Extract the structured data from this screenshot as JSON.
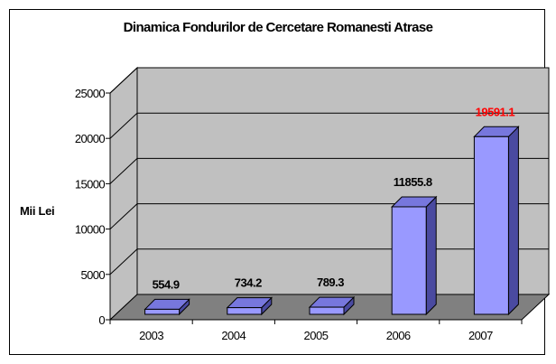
{
  "chart_data": {
    "type": "bar",
    "title": "Dinamica Fondurilor de Cercetare Romanesti Atrase",
    "xlabel": "",
    "ylabel": "Mii Lei",
    "categories": [
      "2003",
      "2004",
      "2005",
      "2006",
      "2007"
    ],
    "values": [
      554.9,
      734.2,
      789.3,
      11855.8,
      19591.1
    ],
    "value_labels": [
      "554.9",
      "734.2",
      "789.3",
      "11855.8",
      "19591.1"
    ],
    "y_ticks": [
      "0",
      "5000",
      "10000",
      "15000",
      "20000",
      "25000"
    ],
    "ylim": [
      0,
      25000
    ],
    "grid": true,
    "legend": "none",
    "three_d": true,
    "colors": {
      "bar_front": "#9999ff",
      "bar_top": "#7777dd",
      "bar_side": "#4a4aa0",
      "wall": "#c0c0c0",
      "floor": "#808080",
      "highlight_label": "#ff0000",
      "label": "#000000"
    },
    "highlighted_labels": [
      "19591.1"
    ]
  }
}
